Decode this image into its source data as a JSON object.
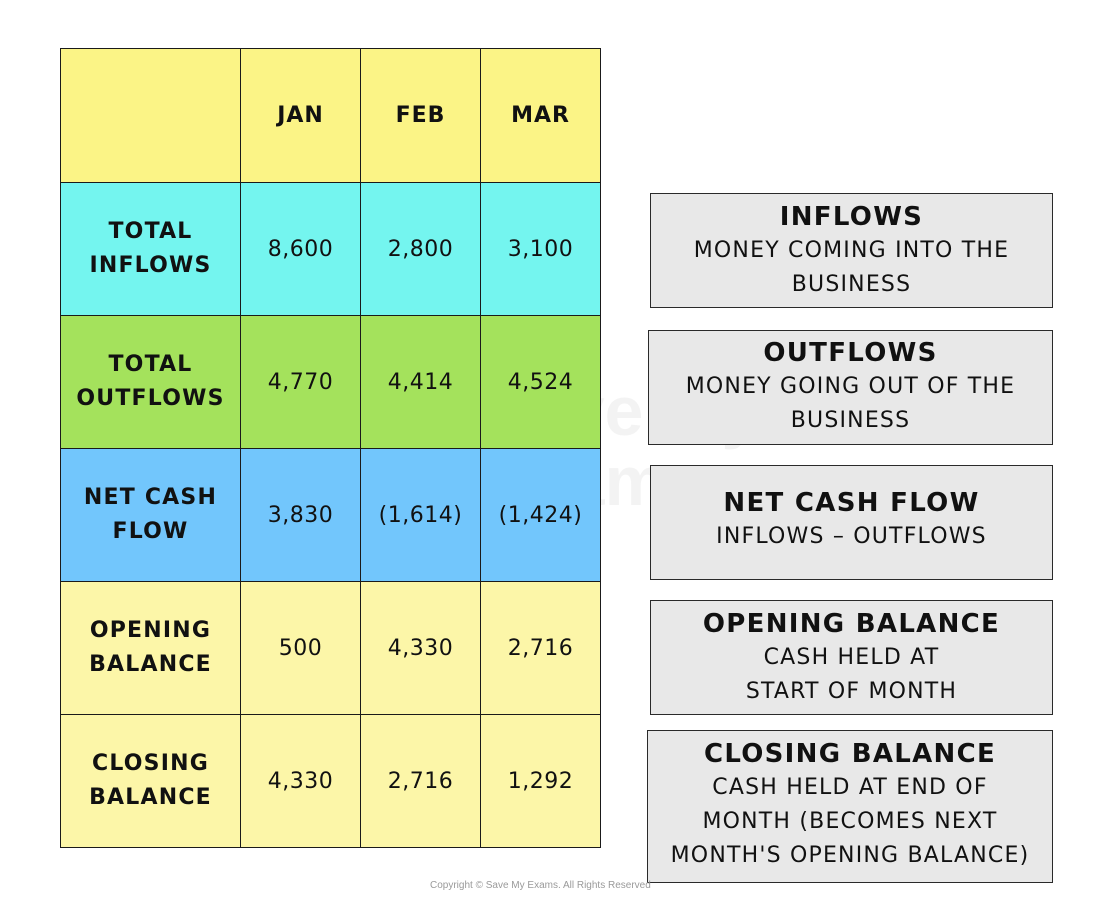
{
  "table": {
    "columns": [
      "JAN",
      "FEB",
      "MAR"
    ],
    "rows": [
      {
        "label": [
          "TOTAL",
          "INFLOWS"
        ],
        "values": [
          "8,600",
          "2,800",
          "3,100"
        ],
        "color": "#74f5ef"
      },
      {
        "label": [
          "TOTAL",
          "OUTFLOWS"
        ],
        "values": [
          "4,770",
          "4,414",
          "4,524"
        ],
        "color": "#a4e25c"
      },
      {
        "label": [
          "NET CASH",
          "FLOW"
        ],
        "values": [
          "3,830",
          "(1,614)",
          "(1,424)"
        ],
        "color": "#72c6fc"
      },
      {
        "label": [
          "OPENING",
          "BALANCE"
        ],
        "values": [
          "500",
          "4,330",
          "2,716"
        ],
        "color": "#fcf6a8"
      },
      {
        "label": [
          "CLOSING",
          "BALANCE"
        ],
        "values": [
          "4,330",
          "2,716",
          "1,292"
        ],
        "color": "#fcf6a8"
      }
    ]
  },
  "definitions": [
    {
      "title": "INFLOWS",
      "lines": [
        "MONEY COMING INTO THE",
        "BUSINESS"
      ]
    },
    {
      "title": "OUTFLOWS",
      "lines": [
        "MONEY GOING OUT OF THE",
        "BUSINESS"
      ]
    },
    {
      "title": "NET CASH FLOW",
      "lines": [
        "INFLOWS – OUTFLOWS"
      ]
    },
    {
      "title": "OPENING BALANCE",
      "lines": [
        "CASH HELD AT",
        "START OF MONTH"
      ]
    },
    {
      "title": "CLOSING BALANCE",
      "lines": [
        "CASH HELD AT END OF",
        "MONTH (BECOMES NEXT",
        "MONTH'S OPENING BALANCE)"
      ]
    }
  ],
  "watermark": {
    "line1": "Save My",
    "line2": "Exams"
  },
  "copyright": "Copyright © Save My Exams. All Rights Reserved"
}
